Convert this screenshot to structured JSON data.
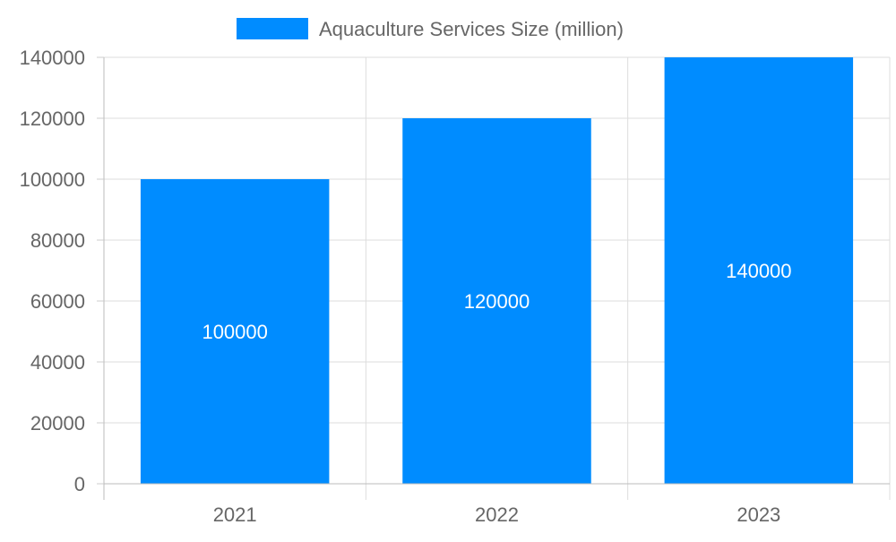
{
  "chart_data": {
    "type": "bar",
    "categories": [
      "2021",
      "2022",
      "2023"
    ],
    "series": [
      {
        "name": "Aquaculture Services Size (million)",
        "values": [
          100000,
          120000,
          140000
        ],
        "color": "#008cff"
      }
    ],
    "data_labels": [
      "100000",
      "120000",
      "140000"
    ],
    "yticks": [
      "0",
      "20000",
      "40000",
      "60000",
      "80000",
      "100000",
      "120000",
      "140000"
    ],
    "ylim": [
      0,
      140000
    ],
    "grid": true,
    "legend": "top-center",
    "xlabel": "",
    "ylabel": "",
    "title": ""
  }
}
